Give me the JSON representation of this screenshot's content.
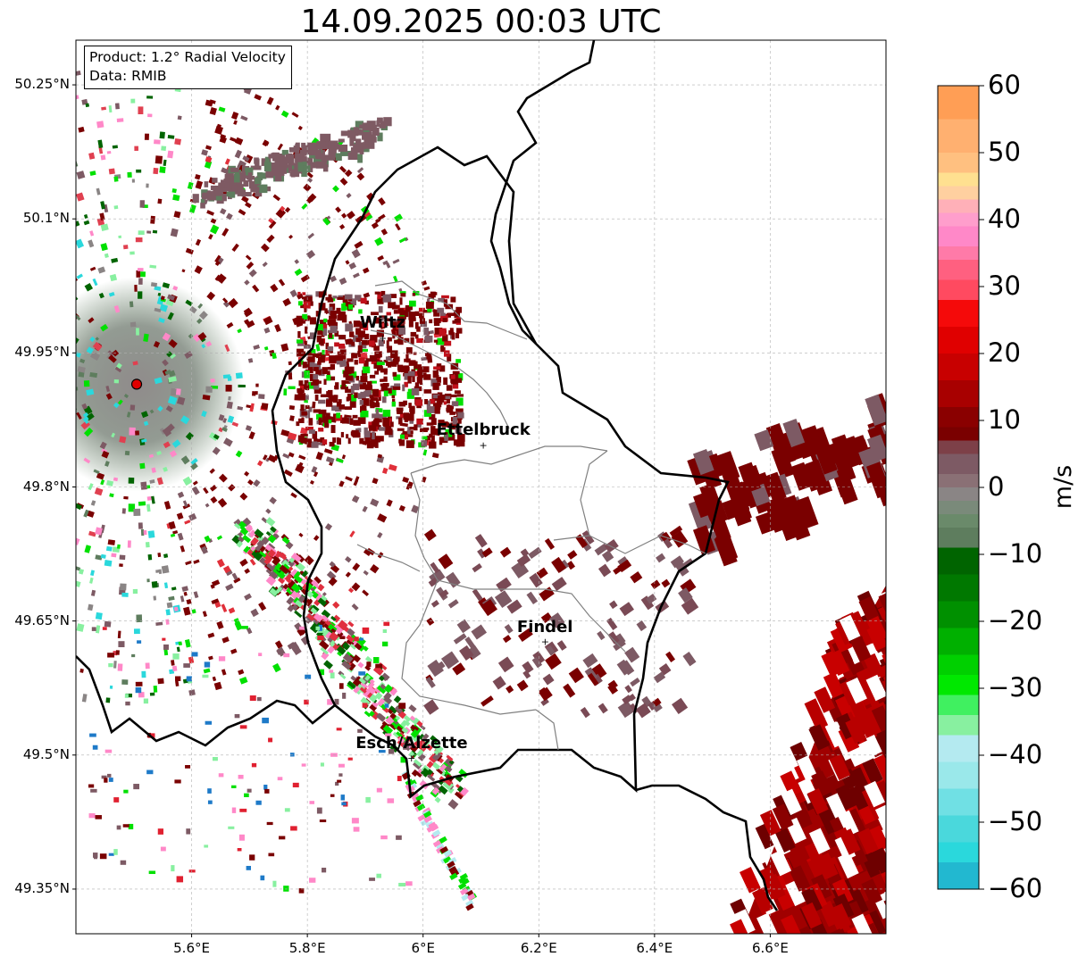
{
  "title": "14.09.2025 00:03 UTC",
  "info": {
    "product": "Product: 1.2° Radial Velocity",
    "data": "Data: RMIB"
  },
  "map": {
    "lon_range": [
      5.4,
      6.8
    ],
    "lat_range": [
      49.3,
      50.3
    ],
    "lat_ticks": [
      "50.25°N",
      "50.1°N",
      "49.95°N",
      "49.8°N",
      "49.65°N",
      "49.5°N",
      "49.35°N"
    ],
    "lon_ticks": [
      "5.6°E",
      "5.8°E",
      "6°E",
      "6.2°E",
      "6.4°E",
      "6.6°E"
    ],
    "radar_site": {
      "lon": 5.505,
      "lat": 49.915
    },
    "cities": [
      {
        "name": "Wiltz",
        "lon": 5.93,
        "lat": 49.967
      },
      {
        "name": "Ettelbruck",
        "lon": 6.104,
        "lat": 49.847
      },
      {
        "name": "Findel",
        "lon": 6.211,
        "lat": 49.627
      },
      {
        "name": "Esch/Alzette",
        "lon": 5.98,
        "lat": 49.497
      }
    ]
  },
  "colorbar": {
    "label": "m/s",
    "min": -60,
    "max": 60,
    "ticks": [
      "60",
      "50",
      "40",
      "30",
      "20",
      "10",
      "0",
      "−10",
      "−20",
      "−30",
      "−40",
      "−50",
      "−60"
    ],
    "colors": {
      "orange": "#ff9e55",
      "pink": "#ff88c8",
      "red": "#f50a0a",
      "darkred": "#7a0000",
      "brownmauve": "#7d5a64",
      "gray": "#8a8585",
      "grayGreen": "#5e7d5e",
      "darkgreen": "#006400",
      "green": "#00e000",
      "lightgreen": "#88f0a0",
      "lightcyan": "#b4eaf0",
      "cyan": "#2ad8dc",
      "blue": "#1e7ac8"
    }
  }
}
